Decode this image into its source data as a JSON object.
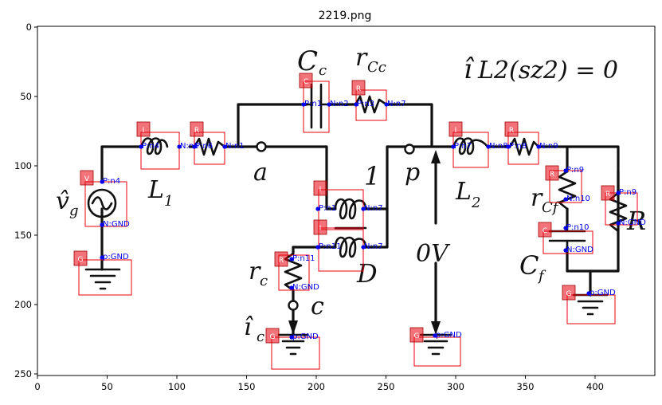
{
  "figure": {
    "title": "2219.png"
  },
  "axes": {
    "x_ticks": [
      "0",
      "50",
      "100",
      "150",
      "200",
      "250",
      "300",
      "350",
      "400"
    ],
    "y_ticks": [
      "0",
      "50",
      "100",
      "150",
      "200",
      "250"
    ]
  },
  "handwriting": {
    "cc": "C",
    "cc_sub": "c",
    "rcc": "r",
    "rcc_sub": "Cc",
    "il2": "î",
    "il2_rest": "L2(sz2) = 0",
    "vg": "v̂",
    "vg_sub": "g",
    "l1": "L",
    "l1_sub": "1",
    "a": "a",
    "one": "1",
    "p": "p",
    "l2": "L",
    "l2_sub": "2",
    "rcf": "r",
    "rcf_sub": "Cf",
    "r": "R",
    "cf": "C",
    "cf_sub": "f",
    "ov": "0V",
    "d": "D",
    "rc": "r",
    "rc_sub": "c",
    "c": "c",
    "ic": "î",
    "ic_sub": "c"
  },
  "detections": [
    {
      "type": "C",
      "pins": [
        "P:n1",
        "N:n2"
      ]
    },
    {
      "type": "R",
      "pins": [
        "P:n3",
        "N:n7"
      ]
    },
    {
      "type": "I",
      "pins": [
        "P:n4",
        "N:n5"
      ]
    },
    {
      "type": "R",
      "pins": [
        "P:n6",
        "N:n1"
      ]
    },
    {
      "type": "I",
      "pins": [
        "P:n7",
        "N:n8"
      ]
    },
    {
      "type": "R",
      "pins": [
        "P:n8",
        "N:n9"
      ]
    },
    {
      "type": "V",
      "pins": [
        "P:n4",
        "N:GND"
      ]
    },
    {
      "type": "R",
      "pins": [
        "P:n9",
        "N:n10"
      ]
    },
    {
      "type": "R",
      "pins": [
        "P:n9",
        "N:GND"
      ]
    },
    {
      "type": "I",
      "pins": [
        "P:n1",
        "N:n7"
      ]
    },
    {
      "type": "I",
      "pins": [
        "P:n11",
        "N:n7"
      ]
    },
    {
      "type": "C",
      "pins": [
        "P:n10",
        "N:GND"
      ]
    },
    {
      "type": "G",
      "pins": [
        "p:GND"
      ]
    },
    {
      "type": "R",
      "pins": [
        "P:n11",
        "N:GND"
      ]
    },
    {
      "type": "G",
      "pins": [
        "p:GND"
      ]
    },
    {
      "type": "G",
      "pins": [
        "p:GND"
      ]
    },
    {
      "type": "G",
      "pins": [
        "p:GND"
      ]
    }
  ]
}
